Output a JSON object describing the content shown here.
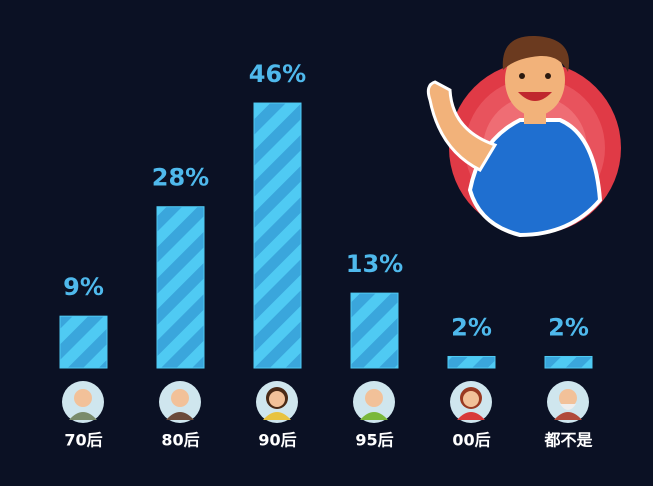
{
  "chart_data": {
    "type": "bar",
    "categories": [
      "70后",
      "80后",
      "90后",
      "95后",
      "00后",
      "都不是"
    ],
    "values": [
      9,
      28,
      46,
      13,
      2,
      2
    ],
    "value_labels": [
      "9%",
      "28%",
      "46%",
      "13%",
      "2%",
      "2%"
    ],
    "color": "#4fcaf3"
  }
}
